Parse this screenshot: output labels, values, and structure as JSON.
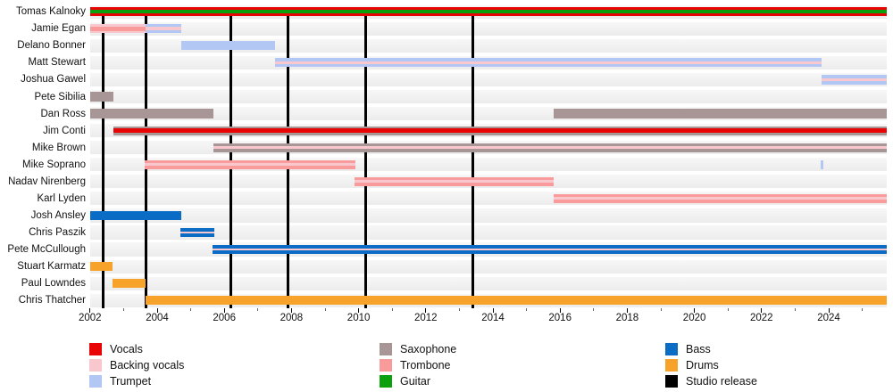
{
  "chart_data": {
    "type": "timeline",
    "subtype": "band-membership-gantt",
    "x_axis": {
      "start": 2002,
      "end": 2025.7,
      "major_ticks": [
        2002,
        2004,
        2006,
        2008,
        2010,
        2012,
        2014,
        2016,
        2018,
        2020,
        2022,
        2024
      ],
      "minor_ticks": [
        2003,
        2005,
        2007,
        2009,
        2011,
        2013,
        2015,
        2017,
        2019,
        2021,
        2023,
        2025
      ]
    },
    "colors": {
      "vocals": "#e80404",
      "backing_vocals": "#f8c8ce",
      "trumpet": "#b3c7f4",
      "saxophone": "#a89696",
      "trombone": "#fa9b9b",
      "guitar": "#0ca10c",
      "bass": "#0b6cc6",
      "drums": "#f7a22b",
      "studio_release": "#000000"
    },
    "members": [
      {
        "name": "Tomas Kalnoky",
        "segments": [
          {
            "start": 2002,
            "end": "present",
            "stripes": [
              "vocals",
              "guitar",
              "vocals"
            ],
            "weights": [
              0.3,
              0.4,
              0.3
            ]
          }
        ]
      },
      {
        "name": "Jamie Egan",
        "segments": [
          {
            "start": 2002,
            "end": 2003.65,
            "stripes": [
              "backing_vocals",
              "trombone",
              "backing_vocals"
            ],
            "weights": [
              0.27,
              0.46,
              0.27
            ]
          },
          {
            "start": 2003.65,
            "end": 2004.72,
            "stripes": [
              "trumpet",
              "backing_vocals",
              "trumpet"
            ],
            "weights": [
              0.32,
              0.36,
              0.32
            ]
          }
        ]
      },
      {
        "name": "Delano Bonner",
        "segments": [
          {
            "start": 2004.72,
            "end": 2007.5,
            "stripes": [
              "trumpet"
            ],
            "weights": [
              1
            ]
          }
        ]
      },
      {
        "name": "Matt Stewart",
        "segments": [
          {
            "start": 2007.5,
            "end": 2023.78,
            "stripes": [
              "trumpet",
              "backing_vocals",
              "trumpet"
            ],
            "weights": [
              0.35,
              0.3,
              0.35
            ]
          }
        ]
      },
      {
        "name": "Joshua Gawel",
        "segments": [
          {
            "start": 2023.78,
            "end": "present",
            "stripes": [
              "trumpet",
              "backing_vocals",
              "trumpet"
            ],
            "weights": [
              0.35,
              0.3,
              0.35
            ]
          }
        ]
      },
      {
        "name": "Pete Sibilia",
        "segments": [
          {
            "start": 2002,
            "end": 2002.7,
            "stripes": [
              "saxophone"
            ],
            "weights": [
              1
            ]
          }
        ]
      },
      {
        "name": "Dan Ross",
        "segments": [
          {
            "start": 2002,
            "end": 2005.67,
            "stripes": [
              "saxophone"
            ],
            "weights": [
              1
            ]
          },
          {
            "start": 2015.8,
            "end": "present",
            "stripes": [
              "saxophone"
            ],
            "weights": [
              1
            ]
          }
        ]
      },
      {
        "name": "Jim Conti",
        "segments": [
          {
            "start": 2002.7,
            "end": "present",
            "stripes": [
              "saxophone",
              "vocals",
              "saxophone"
            ],
            "weights": [
              0.24,
              0.52,
              0.24
            ]
          }
        ]
      },
      {
        "name": "Mike Brown",
        "segments": [
          {
            "start": 2005.67,
            "end": "present",
            "stripes": [
              "saxophone",
              "backing_vocals",
              "saxophone"
            ],
            "weights": [
              0.35,
              0.3,
              0.35
            ]
          }
        ]
      },
      {
        "name": "Mike Soprano",
        "segments": [
          {
            "start": 2003.63,
            "end": 2009.9,
            "stripes": [
              "trombone",
              "backing_vocals",
              "trombone"
            ],
            "weights": [
              0.35,
              0.3,
              0.35
            ]
          },
          {
            "start": 2023.77,
            "end": 2023.83,
            "stripes": [
              "trumpet"
            ],
            "weights": [
              1
            ]
          }
        ]
      },
      {
        "name": "Nadav Nirenberg",
        "segments": [
          {
            "start": 2009.87,
            "end": 2015.8,
            "stripes": [
              "trombone",
              "backing_vocals",
              "trombone"
            ],
            "weights": [
              0.35,
              0.3,
              0.35
            ]
          }
        ]
      },
      {
        "name": "Karl Lyden",
        "segments": [
          {
            "start": 2015.8,
            "end": "present",
            "stripes": [
              "trombone",
              "backing_vocals",
              "trombone"
            ],
            "weights": [
              0.35,
              0.3,
              0.35
            ]
          }
        ]
      },
      {
        "name": "Josh Ansley",
        "segments": [
          {
            "start": 2002,
            "end": 2004.72,
            "stripes": [
              "bass"
            ],
            "weights": [
              1
            ]
          }
        ]
      },
      {
        "name": "Chris Paszik",
        "segments": [
          {
            "start": 2004.7,
            "end": 2005.7,
            "stripes": [
              "bass",
              "backing_vocals",
              "bass"
            ],
            "weights": [
              0.36,
              0.28,
              0.36
            ]
          }
        ]
      },
      {
        "name": "Pete McCullough",
        "segments": [
          {
            "start": 2005.66,
            "end": "present",
            "stripes": [
              "bass",
              "backing_vocals",
              "bass"
            ],
            "weights": [
              0.36,
              0.28,
              0.36
            ]
          }
        ]
      },
      {
        "name": "Stuart Karmatz",
        "segments": [
          {
            "start": 2002,
            "end": 2002.68,
            "stripes": [
              "drums"
            ],
            "weights": [
              1
            ]
          }
        ]
      },
      {
        "name": "Paul Lowndes",
        "segments": [
          {
            "start": 2002.68,
            "end": 2003.65,
            "stripes": [
              "drums"
            ],
            "weights": [
              1
            ]
          }
        ]
      },
      {
        "name": "Chris Thatcher",
        "segments": [
          {
            "start": 2003.65,
            "end": "present",
            "stripes": [
              "drums"
            ],
            "weights": [
              1
            ]
          }
        ]
      }
    ],
    "releases": {
      "label": "Studio release",
      "years": [
        2002.4,
        2003.66,
        2006.19,
        2007.9,
        2010.21,
        2013.39
      ]
    },
    "legend": {
      "columns": [
        [
          {
            "label": "Vocals",
            "role": "vocals"
          },
          {
            "label": "Backing vocals",
            "role": "backing_vocals"
          },
          {
            "label": "Trumpet",
            "role": "trumpet"
          }
        ],
        [
          {
            "label": "Saxophone",
            "role": "saxophone"
          },
          {
            "label": "Trombone",
            "role": "trombone"
          },
          {
            "label": "Guitar",
            "role": "guitar"
          }
        ],
        [
          {
            "label": "Bass",
            "role": "bass"
          },
          {
            "label": "Drums",
            "role": "drums"
          },
          {
            "label": "Studio release",
            "role": "studio_release"
          }
        ]
      ]
    }
  }
}
